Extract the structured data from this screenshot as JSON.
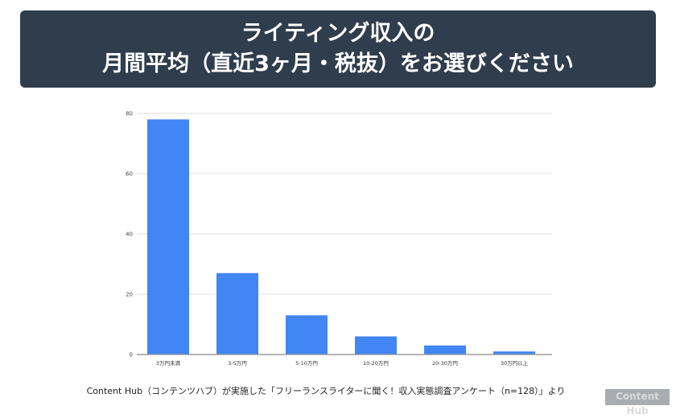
{
  "header": {
    "title_line1": "ライティング収入の",
    "title_line2": "月間平均（直近3ヶ月・税抜）をお選びください"
  },
  "chart_data": {
    "type": "bar",
    "categories": [
      "3万円未満",
      "3-5万円",
      "5-10万円",
      "10-20万円",
      "20-30万円",
      "30万円以上"
    ],
    "values": [
      78,
      27,
      13,
      6,
      3,
      1
    ],
    "ylim": [
      0,
      80
    ],
    "yticks": [
      0,
      20,
      40,
      60,
      80
    ],
    "grid": true,
    "bar_color": "#4285f4"
  },
  "footer": {
    "source": "Content Hub（コンテンツハブ）が実施した「フリーランスライターに聞く！収入実態調査アンケート（n=128）」より",
    "logo": "Content Hub"
  }
}
